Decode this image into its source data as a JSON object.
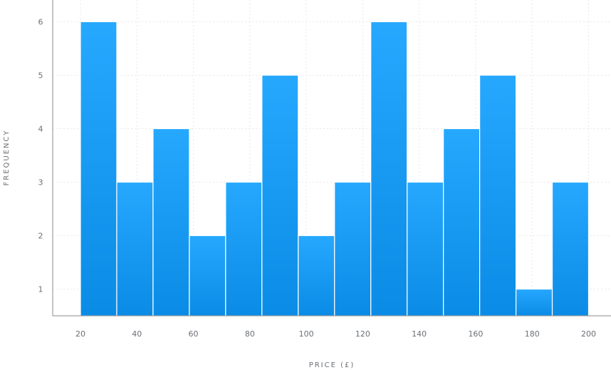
{
  "chart_data": {
    "type": "bar",
    "title": "",
    "xlabel": "PRICE (£)",
    "ylabel": "FREQUENCY",
    "bin_start": 20,
    "bin_width": 12,
    "bins": [
      {
        "from": 20,
        "to": 32,
        "count": 6
      },
      {
        "from": 32,
        "to": 44,
        "count": 3
      },
      {
        "from": 44,
        "to": 56,
        "count": 4
      },
      {
        "from": 56,
        "to": 68,
        "count": 2
      },
      {
        "from": 68,
        "to": 80,
        "count": 3
      },
      {
        "from": 80,
        "to": 92,
        "count": 5
      },
      {
        "from": 92,
        "to": 104,
        "count": 2
      },
      {
        "from": 104,
        "to": 116,
        "count": 3
      },
      {
        "from": 116,
        "to": 128,
        "count": 6
      },
      {
        "from": 128,
        "to": 140,
        "count": 3
      },
      {
        "from": 140,
        "to": 152,
        "count": 4
      },
      {
        "from": 152,
        "to": 164,
        "count": 5
      },
      {
        "from": 164,
        "to": 176,
        "count": 1
      },
      {
        "from": 176,
        "to": 188,
        "count": 3
      }
    ],
    "xticks": [
      "20",
      "40",
      "60",
      "80",
      "100",
      "120",
      "140",
      "160",
      "180",
      "200"
    ],
    "yticks": [
      "1",
      "2",
      "3",
      "4",
      "5",
      "6"
    ],
    "xlim": [
      20,
      200
    ],
    "ylim": [
      0.5,
      6.5
    ],
    "grid": true,
    "bar_color_top": "#26a8ff",
    "bar_color_bottom": "#0a8ce6",
    "axis_color": "#8a8a8a",
    "grid_color": "#e8e8e8"
  }
}
